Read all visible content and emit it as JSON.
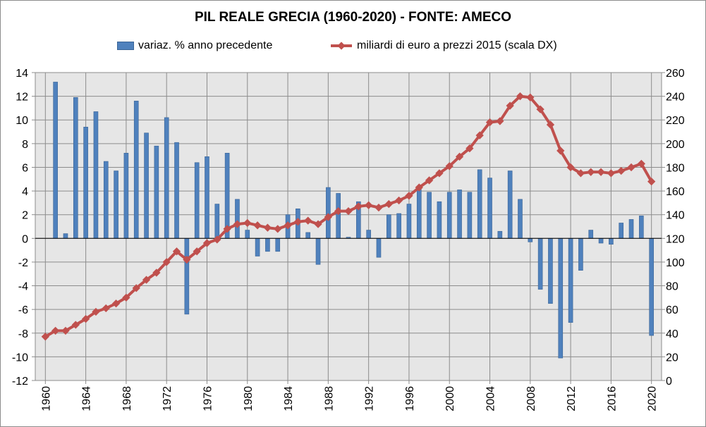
{
  "chart_data": {
    "type": "bar+line",
    "title": "PIL REALE GRECIA (1960-2020)  - FONTE: AMECO",
    "x": [
      1960,
      1961,
      1962,
      1963,
      1964,
      1965,
      1966,
      1967,
      1968,
      1969,
      1970,
      1971,
      1972,
      1973,
      1974,
      1975,
      1976,
      1977,
      1978,
      1979,
      1980,
      1981,
      1982,
      1983,
      1984,
      1985,
      1986,
      1987,
      1988,
      1989,
      1990,
      1991,
      1992,
      1993,
      1994,
      1995,
      1996,
      1997,
      1998,
      1999,
      2000,
      2001,
      2002,
      2003,
      2004,
      2005,
      2006,
      2007,
      2008,
      2009,
      2010,
      2011,
      2012,
      2013,
      2014,
      2015,
      2016,
      2017,
      2018,
      2019,
      2020
    ],
    "x_tick_labels": [
      "1960",
      "1964",
      "1968",
      "1972",
      "1976",
      "1980",
      "1984",
      "1988",
      "1992",
      "1996",
      "2000",
      "2004",
      "2008",
      "2012",
      "2016",
      "2020"
    ],
    "y_left": {
      "min": -12,
      "max": 14,
      "step": 2
    },
    "y_right": {
      "min": 0,
      "max": 260,
      "step": 20
    },
    "grid": true,
    "legend_position": "top",
    "series": [
      {
        "name": "variaz. % anno precedente",
        "type": "bar",
        "axis": "left",
        "color": "#4F81BD",
        "values": [
          null,
          13.2,
          0.4,
          11.9,
          9.4,
          10.7,
          6.5,
          5.7,
          7.2,
          11.6,
          8.9,
          7.8,
          10.2,
          8.1,
          -6.4,
          6.4,
          6.9,
          2.9,
          7.2,
          3.3,
          0.7,
          -1.5,
          -1.1,
          -1.1,
          2.0,
          2.5,
          0.5,
          -2.2,
          4.3,
          3.8,
          0.1,
          3.1,
          0.7,
          -1.6,
          2.0,
          2.1,
          2.9,
          4.4,
          3.9,
          3.1,
          3.9,
          4.1,
          3.9,
          5.8,
          5.1,
          0.6,
          5.7,
          3.3,
          -0.3,
          -4.3,
          -5.5,
          -10.1,
          -7.1,
          -2.7,
          0.7,
          -0.4,
          -0.5,
          1.3,
          1.6,
          1.9,
          -8.2
        ]
      },
      {
        "name": "miliardi di euro a prezzi 2015 (scala DX)",
        "type": "line",
        "axis": "right",
        "color": "#C0504D",
        "values": [
          37,
          42,
          42,
          47,
          52,
          58,
          61,
          65,
          70,
          78,
          85,
          91,
          100,
          109,
          102,
          109,
          116,
          119,
          128,
          132,
          133,
          131,
          129,
          128,
          131,
          134,
          135,
          132,
          138,
          143,
          143,
          147,
          148,
          146,
          149,
          152,
          156,
          163,
          169,
          175,
          181,
          189,
          196,
          207,
          218,
          219,
          232,
          240,
          239,
          229,
          216,
          194,
          180,
          175,
          176,
          176,
          175,
          177,
          180,
          183,
          168
        ]
      }
    ]
  }
}
